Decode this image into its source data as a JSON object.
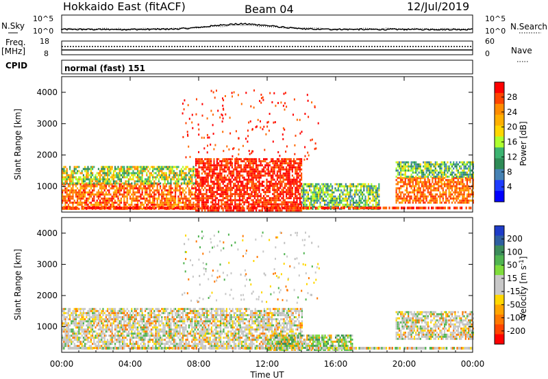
{
  "header": {
    "title": "Hokkaido East (fitACF)",
    "beam": "Beam 04",
    "date": "12/Jul/2019"
  },
  "left_labels": {
    "nsky": "N.Sky",
    "freq": "Freq.",
    "mhz": "[MHz]",
    "cpid": "CPID"
  },
  "right_labels": {
    "nsearch": "N.Search",
    "nave": "Nave"
  },
  "cpid_text": "normal (fast) 151",
  "noise_panel": {
    "left_ticks": [
      "10^5",
      "10^0"
    ],
    "right_ticks": [
      "10^5",
      "10^0"
    ]
  },
  "freq_panel": {
    "left_ticks": [
      "18",
      "8"
    ],
    "right_ticks": [
      "60",
      "0"
    ]
  },
  "chart_data": [
    {
      "type": "heatmap",
      "name": "power",
      "ylabel": "Slant Range [km]",
      "ylim": [
        180,
        4500
      ],
      "yticks": [
        1000,
        2000,
        3000,
        4000
      ],
      "xlim": [
        0,
        24
      ],
      "colorbar": {
        "label": "Power [dB]",
        "ticks": [
          "28",
          "24",
          "20",
          "16",
          "12",
          "8",
          "4"
        ],
        "colors": [
          "#ff0000",
          "#ff4500",
          "#ff8c00",
          "#ffb000",
          "#ffd700",
          "#adff2f",
          "#3cb371",
          "#2e8b57",
          "#4682b4",
          "#1e3cff",
          "#0000ff"
        ]
      },
      "regions": [
        {
          "x": [
            0,
            7.8
          ],
          "y": [
            250,
            1100
          ],
          "level": "orange-red"
        },
        {
          "x": [
            0,
            7.8
          ],
          "y": [
            1100,
            1650
          ],
          "level": "green-yellow"
        },
        {
          "x": [
            7.8,
            14.0
          ],
          "y": [
            250,
            1900
          ],
          "level": "red"
        },
        {
          "x": [
            14.0,
            18.5
          ],
          "y": [
            250,
            1100
          ],
          "level": "green"
        },
        {
          "x": [
            19.5,
            24
          ],
          "y": [
            500,
            1300
          ],
          "level": "red-orange"
        },
        {
          "x": [
            19.5,
            24
          ],
          "y": [
            1300,
            1800
          ],
          "level": "green"
        }
      ]
    },
    {
      "type": "heatmap",
      "name": "velocity",
      "ylabel": "Slant Range [km]",
      "ylim": [
        180,
        4500
      ],
      "yticks": [
        1000,
        2000,
        3000,
        4000
      ],
      "xlim": [
        0,
        24
      ],
      "xticks": [
        "00:00",
        "04:00",
        "08:00",
        "12:00",
        "16:00",
        "20:00",
        "00:00"
      ],
      "xlabel": "Time UT",
      "colorbar": {
        "label": "Velocity [m s-1]",
        "ticks": [
          "200",
          "100",
          "50",
          "15",
          "-15",
          "-50",
          "-100",
          "-200"
        ],
        "colors": [
          "#1e3cc8",
          "#2e5fa0",
          "#3c8c5a",
          "#50b450",
          "#7fdc3c",
          "#c8c8c8",
          "#c8c8c8",
          "#ffd700",
          "#ffa500",
          "#ff7800",
          "#ff4500",
          "#ff0000"
        ]
      },
      "regions": [
        {
          "x": [
            0,
            14.0
          ],
          "y": [
            300,
            1600
          ],
          "level": "gray"
        },
        {
          "x": [
            12.0,
            17.0
          ],
          "y": [
            250,
            750
          ],
          "level": "green"
        },
        {
          "x": [
            19.5,
            24
          ],
          "y": [
            600,
            1500
          ],
          "level": "gray"
        }
      ]
    }
  ],
  "x_axis": {
    "ticks": [
      "00:00",
      "04:00",
      "08:00",
      "12:00",
      "16:00",
      "20:00",
      "00:00"
    ],
    "label": "Time UT"
  }
}
